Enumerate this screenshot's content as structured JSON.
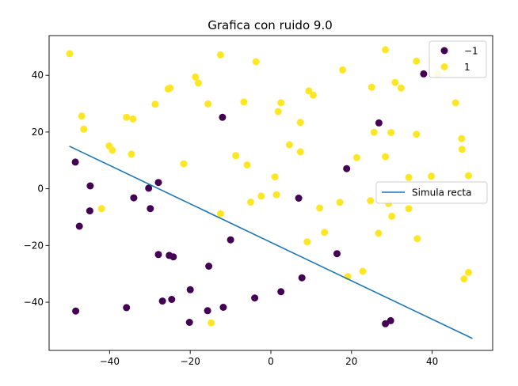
{
  "chart_data": {
    "type": "scatter",
    "title": "Grafica con ruido 9.0",
    "xlabel": "",
    "ylabel": "",
    "xlim": [
      -55,
      55
    ],
    "ylim": [
      -57,
      54
    ],
    "xticks": [
      -40,
      -20,
      0,
      20,
      40
    ],
    "yticks": [
      -40,
      -20,
      0,
      20,
      40
    ],
    "xtick_labels": [
      "−40",
      "−20",
      "0",
      "20",
      "40"
    ],
    "ytick_labels": [
      "−40",
      "−20",
      "0",
      "20",
      "40"
    ],
    "grid": false,
    "series": [
      {
        "name": "−1",
        "color": "#440154",
        "x": [
          37.9,
          26.8,
          -12.0,
          18.8,
          -48.5,
          -44.8,
          -30.3,
          -27.9,
          -34.0,
          -29.9,
          -44.9,
          -47.5,
          -27.9,
          -25.2,
          -24.2,
          -15.4,
          6.9,
          -10.0,
          16.4,
          7.7,
          -20.0,
          -4.0,
          2.5,
          -24.6,
          -26.9,
          -15.7,
          -11.8,
          -35.8,
          -48.4,
          -20.2,
          28.4,
          29.7
        ],
        "y": [
          40.5,
          23.2,
          25.2,
          7.1,
          9.4,
          1.0,
          0.2,
          2.2,
          -3.2,
          -7.0,
          -7.8,
          -13.2,
          -23.2,
          -23.5,
          -24.0,
          -27.3,
          -3.3,
          -18.0,
          -22.9,
          -31.4,
          -35.6,
          -38.5,
          -36.3,
          -39.0,
          -39.6,
          -43.0,
          -41.8,
          -41.9,
          -43.1,
          -47.1,
          -47.6,
          -46.5
        ]
      },
      {
        "name": "1",
        "color": "#fde725",
        "x": [
          -49.9,
          28.4,
          -12.5,
          -3.7,
          36.1,
          17.8,
          41.5,
          -18.7,
          -18.0,
          -25.5,
          -25.0,
          30.8,
          32.3,
          25.0,
          -46.9,
          -6.7,
          -15.6,
          -28.7,
          9.4,
          10.5,
          2.5,
          1.8,
          -35.8,
          -34.2,
          7.3,
          45.8,
          25.6,
          29.8,
          36.1,
          47.3,
          -46.4,
          4.6,
          -40.1,
          -39.3,
          7.3,
          28.4,
          -8.7,
          -34.6,
          -21.6,
          -5.9,
          21.3,
          1.0,
          39.8,
          34.2,
          49.0,
          47.4,
          -2.4,
          1.4,
          -5.0,
          29.2,
          24.7,
          17.1,
          12.1,
          -42.0,
          34.2,
          -12.5,
          30.0,
          26.7,
          13.3,
          36.3,
          9.0,
          22.8,
          49.0,
          19.1,
          47.9,
          -14.8
        ],
        "y": [
          47.6,
          49.0,
          47.2,
          44.8,
          45.0,
          41.9,
          40.4,
          39.4,
          37.3,
          35.2,
          35.5,
          37.5,
          35.5,
          35.8,
          25.6,
          30.6,
          29.9,
          29.8,
          34.5,
          33.0,
          30.3,
          27.2,
          25.2,
          24.6,
          23.4,
          30.3,
          19.9,
          19.8,
          19.2,
          17.7,
          21.0,
          15.5,
          15.1,
          13.6,
          13.0,
          11.3,
          11.7,
          12.2,
          8.8,
          8.4,
          11.0,
          4.2,
          4.4,
          4.0,
          4.6,
          13.9,
          -2.6,
          -2.1,
          -4.7,
          -5.2,
          -4.2,
          -4.8,
          -6.8,
          -7.0,
          -7.0,
          -8.8,
          -9.7,
          -15.7,
          -15.4,
          -17.6,
          -18.7,
          -29.1,
          -29.5,
          -31.0,
          -31.8,
          -47.3
        ]
      }
    ],
    "line": {
      "name": "Simula recta",
      "color": "#1f77b4",
      "x": [
        -50,
        50
      ],
      "y": [
        15.0,
        -52.8
      ]
    },
    "legends": [
      {
        "position": "top-right",
        "entries": [
          "−1",
          "1"
        ]
      },
      {
        "position": "center-right",
        "entries": [
          "Simula recta"
        ]
      }
    ]
  }
}
